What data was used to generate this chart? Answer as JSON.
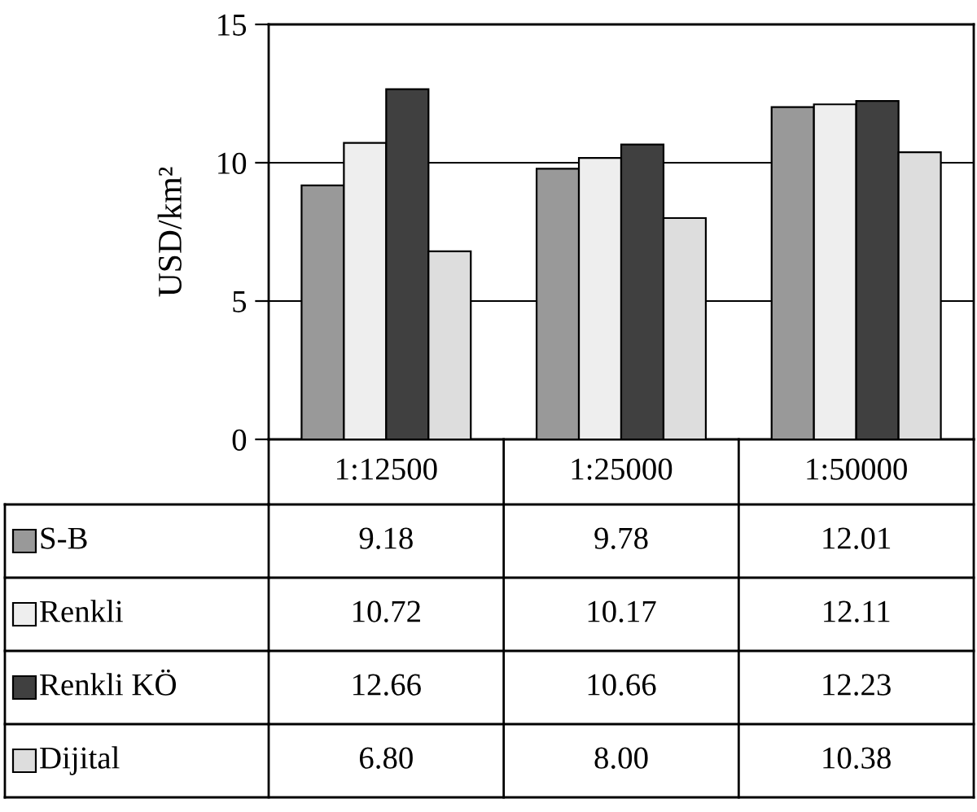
{
  "chart_data": {
    "type": "bar",
    "ylabel": "USD/km²",
    "categories": [
      "1:12500",
      "1:25000",
      "1:50000"
    ],
    "ylim": [
      0,
      15
    ],
    "yticks": [
      0,
      5,
      10,
      15
    ],
    "grid": "y",
    "legend": "bottom",
    "data_labels": true,
    "series": [
      {
        "name": "S-B",
        "color": "#999999",
        "values": [
          9.18,
          9.78,
          12.01
        ],
        "value_labels": [
          "9.18",
          "9.78",
          "12.01"
        ]
      },
      {
        "name": "Renkli",
        "color": "#eeeeee",
        "values": [
          10.72,
          10.17,
          12.11
        ],
        "value_labels": [
          "10.72",
          "10.17",
          "12.11"
        ]
      },
      {
        "name": "Renkli KÖ",
        "color": "#404040",
        "values": [
          12.66,
          10.66,
          12.23
        ],
        "value_labels": [
          "12.66",
          "10.66",
          "12.23"
        ]
      },
      {
        "name": "Dijital",
        "color": "#dddddd",
        "values": [
          6.8,
          8.0,
          10.38
        ],
        "value_labels": [
          "6.80",
          "8.00",
          "10.38"
        ]
      }
    ]
  }
}
